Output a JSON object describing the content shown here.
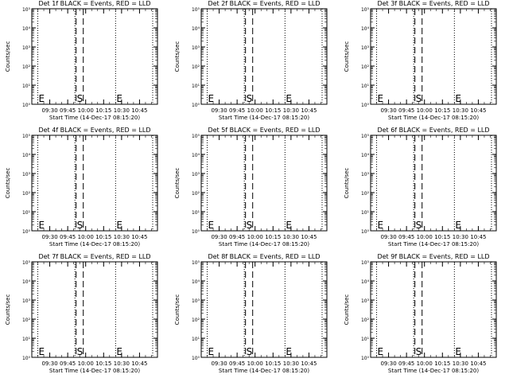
{
  "ylabel": "Counts/sec",
  "xlabel": "Start Time (14-Dec-17 08:15:20)",
  "y_tick_labels": [
    "10⁰",
    "10¹",
    "10²",
    "10³",
    "10⁴",
    "10⁵"
  ],
  "x_tick_labels": [
    "09:30",
    "09:45",
    "10:00",
    "10:15",
    "10:30",
    "10:45"
  ],
  "markers": {
    "start": "S",
    "end": "E"
  },
  "colors": {
    "events": "#000000",
    "lld": "#ff0000"
  },
  "chart_data": [
    {
      "type": "line",
      "title": "Det 1f BLACK = Events, RED = LLD",
      "ylim": [
        1,
        100000
      ],
      "log_y": true,
      "x_ticks": [
        "09:30",
        "09:45",
        "10:00",
        "10:15",
        "10:30",
        "10:45"
      ],
      "dotted_lines_x": [
        "09:20",
        "09:51",
        "10:25",
        "10:56"
      ],
      "dashed_lines_x": [
        "09:52",
        "09:58"
      ],
      "markers": [
        {
          "label": "E",
          "x": "09:20"
        },
        {
          "label": "S",
          "x": "09:52"
        },
        {
          "label": "E",
          "x": "10:25"
        }
      ],
      "series": [],
      "grid": false
    },
    {
      "type": "line",
      "title": "Det 2f BLACK = Events, RED = LLD",
      "ylim": [
        1,
        100000
      ],
      "log_y": true,
      "x_ticks": [
        "09:30",
        "09:45",
        "10:00",
        "10:15",
        "10:30",
        "10:45"
      ],
      "dotted_lines_x": [
        "09:20",
        "09:51",
        "10:25",
        "10:56"
      ],
      "dashed_lines_x": [
        "09:52",
        "09:58"
      ],
      "markers": [
        {
          "label": "E",
          "x": "09:20"
        },
        {
          "label": "S",
          "x": "09:52"
        },
        {
          "label": "E",
          "x": "10:25"
        }
      ],
      "series": [],
      "grid": false
    },
    {
      "type": "line",
      "title": "Det 3f BLACK = Events, RED = LLD",
      "ylim": [
        1,
        100000
      ],
      "log_y": true,
      "x_ticks": [
        "09:30",
        "09:45",
        "10:00",
        "10:15",
        "10:30",
        "10:45"
      ],
      "dotted_lines_x": [
        "09:20",
        "09:51",
        "10:25",
        "10:56"
      ],
      "dashed_lines_x": [
        "09:52",
        "09:58"
      ],
      "markers": [
        {
          "label": "E",
          "x": "09:20"
        },
        {
          "label": "S",
          "x": "09:52"
        },
        {
          "label": "E",
          "x": "10:25"
        }
      ],
      "series": [],
      "grid": false
    },
    {
      "type": "line",
      "title": "Det 4f BLACK = Events, RED = LLD",
      "ylim": [
        1,
        100000
      ],
      "log_y": true,
      "x_ticks": [
        "09:30",
        "09:45",
        "10:00",
        "10:15",
        "10:30",
        "10:45"
      ],
      "dotted_lines_x": [
        "09:20",
        "09:51",
        "10:25",
        "10:56"
      ],
      "dashed_lines_x": [
        "09:52",
        "09:58"
      ],
      "markers": [
        {
          "label": "E",
          "x": "09:20"
        },
        {
          "label": "S",
          "x": "09:52"
        },
        {
          "label": "E",
          "x": "10:25"
        }
      ],
      "series": [],
      "grid": false
    },
    {
      "type": "line",
      "title": "Det 5f BLACK = Events, RED = LLD",
      "ylim": [
        1,
        100000
      ],
      "log_y": true,
      "x_ticks": [
        "09:30",
        "09:45",
        "10:00",
        "10:15",
        "10:30",
        "10:45"
      ],
      "dotted_lines_x": [
        "09:20",
        "09:51",
        "10:25",
        "10:56"
      ],
      "dashed_lines_x": [
        "09:52",
        "09:58"
      ],
      "markers": [
        {
          "label": "E",
          "x": "09:20"
        },
        {
          "label": "S",
          "x": "09:52"
        },
        {
          "label": "E",
          "x": "10:25"
        }
      ],
      "series": [],
      "grid": false
    },
    {
      "type": "line",
      "title": "Det 6f BLACK = Events, RED = LLD",
      "ylim": [
        1,
        100000
      ],
      "log_y": true,
      "x_ticks": [
        "09:30",
        "09:45",
        "10:00",
        "10:15",
        "10:30",
        "10:45"
      ],
      "dotted_lines_x": [
        "09:20",
        "09:51",
        "10:25",
        "10:56"
      ],
      "dashed_lines_x": [
        "09:52",
        "09:58"
      ],
      "markers": [
        {
          "label": "E",
          "x": "09:20"
        },
        {
          "label": "S",
          "x": "09:52"
        },
        {
          "label": "E",
          "x": "10:25"
        }
      ],
      "series": [],
      "grid": false
    },
    {
      "type": "line",
      "title": "Det 7f BLACK = Events, RED = LLD",
      "ylim": [
        1,
        100000
      ],
      "log_y": true,
      "x_ticks": [
        "09:30",
        "09:45",
        "10:00",
        "10:15",
        "10:30",
        "10:45"
      ],
      "dotted_lines_x": [
        "09:20",
        "09:51",
        "10:25",
        "10:56"
      ],
      "dashed_lines_x": [
        "09:52",
        "09:58"
      ],
      "markers": [
        {
          "label": "E",
          "x": "09:20"
        },
        {
          "label": "S",
          "x": "09:52"
        },
        {
          "label": "E",
          "x": "10:25"
        }
      ],
      "series": [],
      "grid": false
    },
    {
      "type": "line",
      "title": "Det 8f BLACK = Events, RED = LLD",
      "ylim": [
        1,
        100000
      ],
      "log_y": true,
      "x_ticks": [
        "09:30",
        "09:45",
        "10:00",
        "10:15",
        "10:30",
        "10:45"
      ],
      "dotted_lines_x": [
        "09:20",
        "09:51",
        "10:25",
        "10:56"
      ],
      "dashed_lines_x": [
        "09:52",
        "09:58"
      ],
      "markers": [
        {
          "label": "E",
          "x": "09:20"
        },
        {
          "label": "S",
          "x": "09:52"
        },
        {
          "label": "E",
          "x": "10:25"
        }
      ],
      "series": [],
      "grid": false
    },
    {
      "type": "line",
      "title": "Det 9f BLACK = Events, RED = LLD",
      "ylim": [
        1,
        100000
      ],
      "log_y": true,
      "x_ticks": [
        "09:30",
        "09:45",
        "10:00",
        "10:15",
        "10:30",
        "10:45"
      ],
      "dotted_lines_x": [
        "09:20",
        "09:51",
        "10:25",
        "10:56"
      ],
      "dashed_lines_x": [
        "09:52",
        "09:58"
      ],
      "markers": [
        {
          "label": "E",
          "x": "09:20"
        },
        {
          "label": "S",
          "x": "09:52"
        },
        {
          "label": "E",
          "x": "10:25"
        }
      ],
      "series": [],
      "grid": false
    }
  ]
}
